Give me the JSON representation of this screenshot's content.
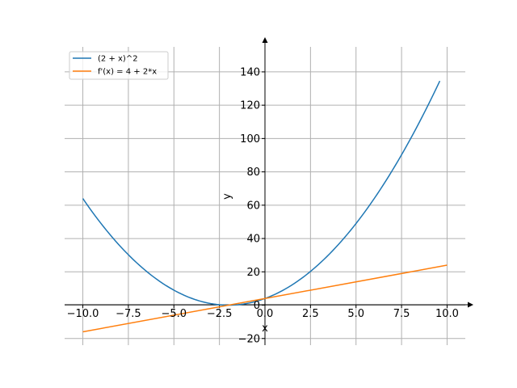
{
  "chart_data": {
    "type": "line",
    "title": "",
    "xlabel": "x",
    "ylabel": "y",
    "xlim": [
      -11,
      11
    ],
    "ylim": [
      -24,
      155
    ],
    "grid": true,
    "legend_position": "top-left",
    "x_ticks": [
      -10,
      -7.5,
      -5,
      -2.5,
      0,
      2.5,
      5,
      7.5,
      10
    ],
    "x_tick_labels": [
      "−10.0",
      "−7.5",
      "−5.0",
      "−2.5",
      "0.0",
      "2.5",
      "5.0",
      "7.5",
      "10.0"
    ],
    "y_ticks": [
      -20,
      0,
      20,
      40,
      60,
      80,
      100,
      120,
      140
    ],
    "y_tick_labels": [
      "−20",
      "0",
      "20",
      "40",
      "60",
      "80",
      "100",
      "120",
      "140"
    ],
    "series": [
      {
        "name": "(2 + x)^2",
        "color": "#1f77b4",
        "x": [
          -10,
          -9,
          -8,
          -7,
          -6,
          -5,
          -4,
          -3,
          -2,
          -1,
          0,
          1,
          2,
          3,
          4,
          5,
          6,
          7,
          8,
          9,
          9.6
        ],
        "y": [
          64,
          49,
          36,
          25,
          16,
          9,
          4,
          1,
          0,
          1,
          4,
          9,
          16,
          25,
          36,
          49,
          64,
          81,
          100,
          121,
          134.56
        ]
      },
      {
        "name": "f'(x) = 4 + 2*x",
        "color": "#ff7f0e",
        "x": [
          -10,
          10
        ],
        "y": [
          -16,
          24
        ]
      }
    ]
  }
}
